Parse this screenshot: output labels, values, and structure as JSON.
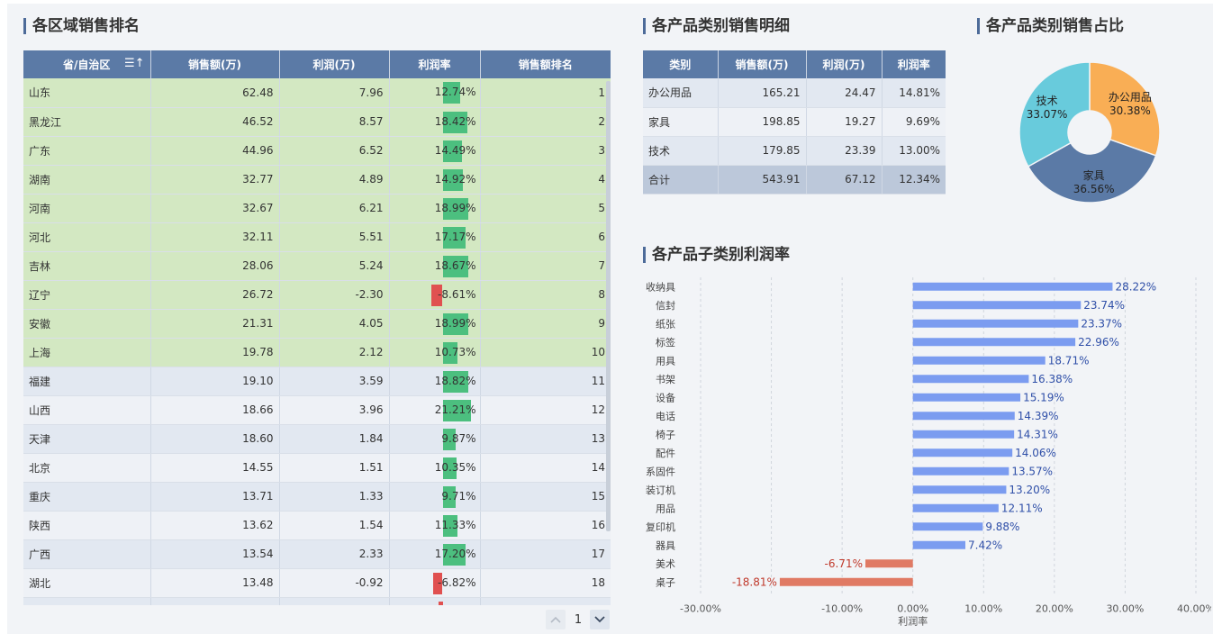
{
  "titles": {
    "region": "各区域销售排名",
    "product": "各产品类别销售明细",
    "share": "各产品类别销售占比",
    "subcat": "各产品子类别利润率"
  },
  "region_table": {
    "headers": [
      "省/自治区",
      "销售额(万)",
      "利润(万)",
      "利润率",
      "销售额排名"
    ],
    "rows": [
      {
        "name": "山东",
        "sales": "62.48",
        "profit": "7.96",
        "rate": "12.74%",
        "rate_value": 12.74,
        "rank": "1",
        "top": true
      },
      {
        "name": "黑龙江",
        "sales": "46.52",
        "profit": "8.57",
        "rate": "18.42%",
        "rate_value": 18.42,
        "rank": "2",
        "top": true
      },
      {
        "name": "广东",
        "sales": "44.96",
        "profit": "6.52",
        "rate": "14.49%",
        "rate_value": 14.49,
        "rank": "3",
        "top": true
      },
      {
        "name": "湖南",
        "sales": "32.77",
        "profit": "4.89",
        "rate": "14.92%",
        "rate_value": 14.92,
        "rank": "4",
        "top": true
      },
      {
        "name": "河南",
        "sales": "32.67",
        "profit": "6.21",
        "rate": "18.99%",
        "rate_value": 18.99,
        "rank": "5",
        "top": true
      },
      {
        "name": "河北",
        "sales": "32.11",
        "profit": "5.51",
        "rate": "17.17%",
        "rate_value": 17.17,
        "rank": "6",
        "top": true
      },
      {
        "name": "吉林",
        "sales": "28.06",
        "profit": "5.24",
        "rate": "18.67%",
        "rate_value": 18.67,
        "rank": "7",
        "top": true
      },
      {
        "name": "辽宁",
        "sales": "26.72",
        "profit": "-2.30",
        "rate": "-8.61%",
        "rate_value": -8.61,
        "rank": "8",
        "top": true
      },
      {
        "name": "安徽",
        "sales": "21.31",
        "profit": "4.05",
        "rate": "18.99%",
        "rate_value": 18.99,
        "rank": "9",
        "top": true
      },
      {
        "name": "上海",
        "sales": "19.78",
        "profit": "2.12",
        "rate": "10.73%",
        "rate_value": 10.73,
        "rank": "10",
        "top": true
      },
      {
        "name": "福建",
        "sales": "19.10",
        "profit": "3.59",
        "rate": "18.82%",
        "rate_value": 18.82,
        "rank": "11",
        "top": false
      },
      {
        "name": "山西",
        "sales": "18.66",
        "profit": "3.96",
        "rate": "21.21%",
        "rate_value": 21.21,
        "rank": "12",
        "top": false
      },
      {
        "name": "天津",
        "sales": "18.60",
        "profit": "1.84",
        "rate": "9.87%",
        "rate_value": 9.87,
        "rank": "13",
        "top": false
      },
      {
        "name": "北京",
        "sales": "14.55",
        "profit": "1.51",
        "rate": "10.35%",
        "rate_value": 10.35,
        "rank": "14",
        "top": false
      },
      {
        "name": "重庆",
        "sales": "13.71",
        "profit": "1.33",
        "rate": "9.71%",
        "rate_value": 9.71,
        "rank": "15",
        "top": false
      },
      {
        "name": "陕西",
        "sales": "13.62",
        "profit": "1.54",
        "rate": "11.33%",
        "rate_value": 11.33,
        "rank": "16",
        "top": false
      },
      {
        "name": "广西",
        "sales": "13.54",
        "profit": "2.33",
        "rate": "17.20%",
        "rate_value": 17.2,
        "rank": "17",
        "top": false
      },
      {
        "name": "湖北",
        "sales": "13.48",
        "profit": "-0.92",
        "rate": "-6.82%",
        "rate_value": -6.82,
        "rank": "18",
        "top": false
      },
      {
        "name": "",
        "sales": "",
        "profit": "",
        "rate": "",
        "rate_value": -3.0,
        "rank": "",
        "top": false
      }
    ]
  },
  "pagination": {
    "current": "1",
    "prev_icon": "chevron-up-icon",
    "next_icon": "chevron-down-icon"
  },
  "sort_icon": "sort-icon",
  "product_table": {
    "headers": [
      "类别",
      "销售额(万)",
      "利润(万)",
      "利润率"
    ],
    "rows": [
      {
        "name": "办公用品",
        "sales": "165.21",
        "profit": "24.47",
        "rate": "14.81%"
      },
      {
        "name": "家具",
        "sales": "198.85",
        "profit": "19.27",
        "rate": "9.69%"
      },
      {
        "name": "技术",
        "sales": "179.85",
        "profit": "23.39",
        "rate": "13.00%"
      }
    ],
    "total": {
      "name": "合计",
      "sales": "543.91",
      "profit": "67.12",
      "rate": "12.34%"
    }
  },
  "colors": {
    "header": "#5b7aa6",
    "top10_row": "#d3e8c2",
    "positive_bar": "#4cbf7f",
    "negative_bar": "#e05050",
    "subcat_positive": "#7b9cf0",
    "subcat_negative": "#e07a64"
  },
  "chart_data": [
    {
      "type": "pie",
      "donut": true,
      "categories": [
        "办公用品",
        "家具",
        "技术"
      ],
      "values": [
        30.38,
        36.56,
        33.07
      ],
      "labels": [
        "30.38%",
        "36.56%",
        "33.07%"
      ],
      "colors": [
        "#f9ae55",
        "#5b7aa6",
        "#68cbdc"
      ]
    },
    {
      "type": "bar",
      "orientation": "horizontal",
      "categories": [
        "收纳具",
        "信封",
        "纸张",
        "标签",
        "用具",
        "书架",
        "设备",
        "电话",
        "椅子",
        "配件",
        "系固件",
        "装订机",
        "用品",
        "复印机",
        "器具",
        "美术",
        "桌子"
      ],
      "values": [
        28.22,
        23.74,
        23.37,
        22.96,
        18.71,
        16.38,
        15.19,
        14.39,
        14.31,
        14.06,
        13.57,
        13.2,
        12.11,
        9.88,
        7.42,
        -6.71,
        -18.81
      ],
      "value_labels": [
        "28.22%",
        "23.74%",
        "23.37%",
        "22.96%",
        "18.71%",
        "16.38%",
        "15.19%",
        "14.39%",
        "14.31%",
        "14.06%",
        "13.57%",
        "13.20%",
        "12.11%",
        "9.88%",
        "7.42%",
        "-6.71%",
        "-18.81%"
      ],
      "xlabel": "利润率",
      "xlim": [
        -30,
        40
      ],
      "xticks": [
        -30,
        -20,
        -10,
        0,
        10,
        20,
        30,
        40
      ],
      "xtick_labels": [
        "-30.00%",
        "",
        "-10.00%",
        "0.00%",
        "10.00%",
        "20.00%",
        "30.00%",
        "40.00%"
      ],
      "grid": true
    }
  ]
}
